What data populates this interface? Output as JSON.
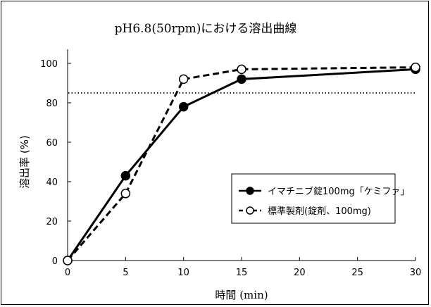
{
  "chart_data": {
    "type": "line",
    "title": "pH6.8(50rpm)における溶出曲線",
    "xlabel": "時間 (min)",
    "ylabel": "溶出率 (%)",
    "xlim": [
      0,
      30
    ],
    "ylim": [
      0,
      100
    ],
    "x_ticks": [
      0,
      5,
      10,
      15,
      20,
      25,
      30
    ],
    "y_ticks": [
      0,
      20,
      40,
      60,
      80,
      100
    ],
    "grid": false,
    "legend_position": "center-right",
    "reference_line": {
      "y": 85,
      "style": "dotted"
    },
    "series": [
      {
        "name": "イマチニブ錠100mg「ケミファ」",
        "style": "solid",
        "marker": "filled-circle",
        "color": "#000000",
        "x": [
          0,
          5,
          10,
          15,
          30
        ],
        "y": [
          0,
          43,
          78,
          92,
          97
        ]
      },
      {
        "name": "標準製剤(錠剤、100mg)",
        "style": "dashed",
        "marker": "open-circle",
        "color": "#000000",
        "x": [
          0,
          5,
          10,
          15,
          30
        ],
        "y": [
          0,
          34,
          92,
          97,
          98
        ]
      }
    ]
  }
}
